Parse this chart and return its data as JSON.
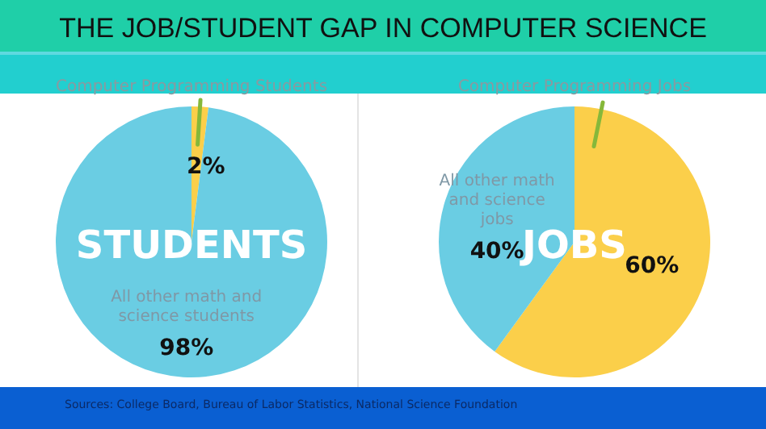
{
  "chart_data": [
    {
      "type": "pie",
      "title": "THE JOB/STUDENT GAP IN COMPUTER SCIENCE",
      "categories": [
        "Computer Programming Students",
        "All other math and science students"
      ],
      "values": [
        2,
        98
      ],
      "colors": [
        "#fbcf4a",
        "#6acde3"
      ],
      "value_labels": [
        "2%",
        "98%"
      ],
      "annotations": [
        "STUDENTS"
      ]
    },
    {
      "type": "pie",
      "categories": [
        "Computer Programming Jobs",
        "All other math and science jobs"
      ],
      "values": [
        60,
        40
      ],
      "colors": [
        "#fbcf4a",
        "#6acde3"
      ],
      "value_labels": [
        "60%",
        "40%"
      ],
      "annotations": [
        "JOBS",
        "Sources: College Board, Bureau of Labor Statistics, National Science Foundation"
      ]
    }
  ]
}
